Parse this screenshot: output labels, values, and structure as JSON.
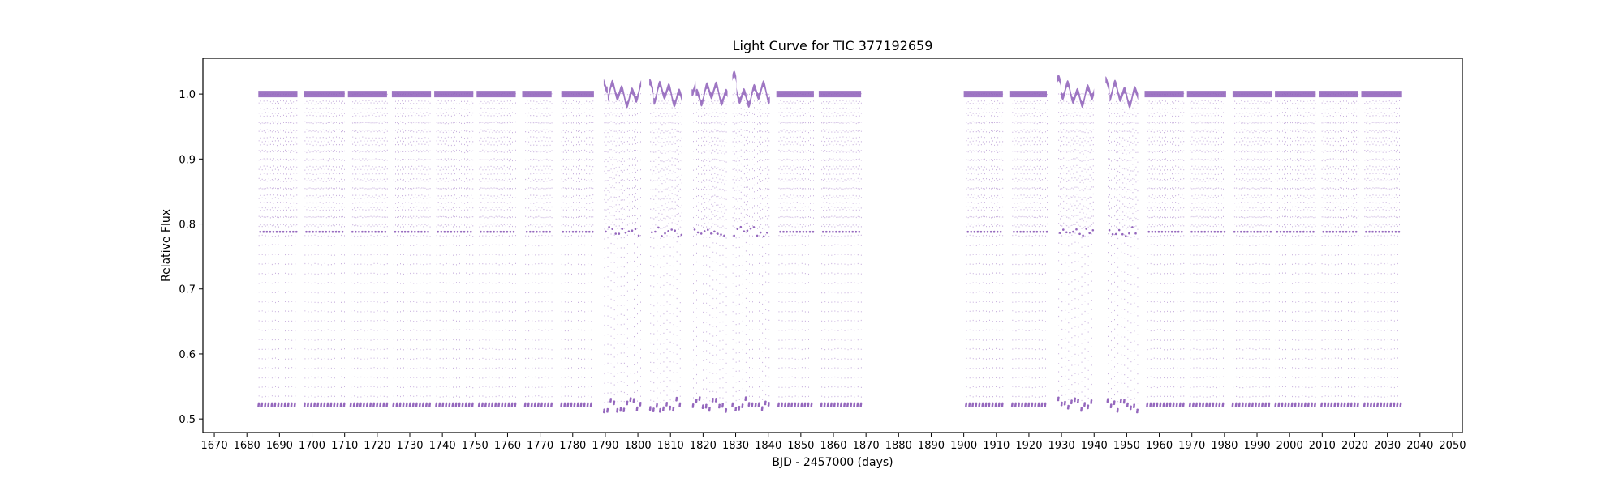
{
  "chart_data": {
    "type": "scatter",
    "title": "Light Curve for TIC 377192659",
    "xlabel": "BJD - 2457000 (days)",
    "ylabel": "Relative Flux",
    "xlim": [
      1666.5,
      2053
    ],
    "ylim": [
      0.479,
      1.055
    ],
    "xticks": [
      1670,
      1680,
      1690,
      1700,
      1710,
      1720,
      1730,
      1740,
      1750,
      1760,
      1770,
      1780,
      1790,
      1800,
      1810,
      1820,
      1830,
      1840,
      1850,
      1860,
      1870,
      1880,
      1890,
      1900,
      1910,
      1920,
      1930,
      1940,
      1950,
      1960,
      1970,
      1980,
      1990,
      2000,
      2010,
      2020,
      2030,
      2040,
      2050
    ],
    "yticks": [
      0.5,
      0.6,
      0.7,
      0.8,
      0.9,
      1.0
    ],
    "grid": false,
    "legend": "none",
    "marker_color": "#9467bd",
    "baseline_flux": 1.0,
    "primary_eclipse_depth_flux": 0.52,
    "secondary_eclipse_depth_flux": 0.788,
    "eclipse_period_days": 1.01,
    "observing_segments": [
      {
        "start": 1683.5,
        "end": 1695.5,
        "noisy": false
      },
      {
        "start": 1697.5,
        "end": 1710.0,
        "noisy": false
      },
      {
        "start": 1711.0,
        "end": 1723.0,
        "noisy": false
      },
      {
        "start": 1724.5,
        "end": 1736.5,
        "noisy": false
      },
      {
        "start": 1737.5,
        "end": 1749.5,
        "noisy": false
      },
      {
        "start": 1750.5,
        "end": 1762.5,
        "noisy": false
      },
      {
        "start": 1764.5,
        "end": 1773.5,
        "noisy": false
      },
      {
        "start": 1776.5,
        "end": 1786.5,
        "noisy": false
      },
      {
        "start": 1789.5,
        "end": 1801.0,
        "noisy": true
      },
      {
        "start": 1803.5,
        "end": 1813.5,
        "noisy": true
      },
      {
        "start": 1816.5,
        "end": 1827.5,
        "noisy": true
      },
      {
        "start": 1829.0,
        "end": 1840.5,
        "noisy": true
      },
      {
        "start": 1842.5,
        "end": 1854.0,
        "noisy": false
      },
      {
        "start": 1855.5,
        "end": 1868.5,
        "noisy": false
      },
      {
        "start": 1900.0,
        "end": 1912.0,
        "noisy": false
      },
      {
        "start": 1914.0,
        "end": 1925.5,
        "noisy": false
      },
      {
        "start": 1928.5,
        "end": 1940.0,
        "noisy": true
      },
      {
        "start": 1943.5,
        "end": 1953.5,
        "noisy": true
      },
      {
        "start": 1955.5,
        "end": 1967.5,
        "noisy": false
      },
      {
        "start": 1968.5,
        "end": 1980.5,
        "noisy": false
      },
      {
        "start": 1982.5,
        "end": 1994.5,
        "noisy": false
      },
      {
        "start": 1995.5,
        "end": 2008.0,
        "noisy": false
      },
      {
        "start": 2009.0,
        "end": 2021.0,
        "noisy": false
      },
      {
        "start": 2022.0,
        "end": 2034.5,
        "noisy": false
      }
    ]
  }
}
